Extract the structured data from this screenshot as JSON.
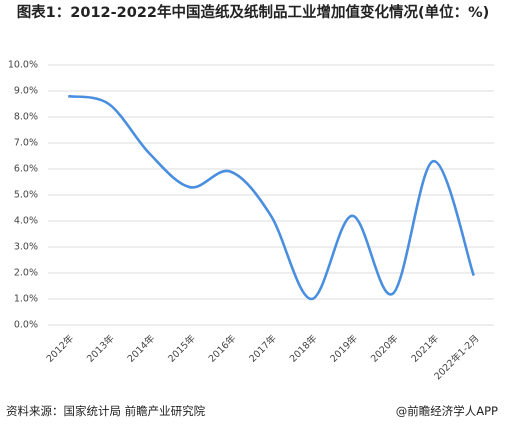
{
  "chart_data": {
    "type": "line",
    "title": "图表1：2012-2022年中国造纸及纸制品工业增加值变化情况(单位：%)",
    "source": "资料来源：国家统计局 前瞻产业研究院",
    "credit": "@前瞻经济学人APP",
    "categories": [
      "2012年",
      "2013年",
      "2014年",
      "2015年",
      "2016年",
      "2017年",
      "2018年",
      "2019年",
      "2020年",
      "2021年",
      "2022年1-2月"
    ],
    "values": [
      8.8,
      8.5,
      6.6,
      5.3,
      5.9,
      4.2,
      1.0,
      4.2,
      1.2,
      6.3,
      1.9
    ],
    "color": "#4a8ee0",
    "ylim": [
      0,
      10
    ],
    "yticks": [
      {
        "value": 0,
        "label": "0.0%"
      },
      {
        "value": 1,
        "label": "1.0%"
      },
      {
        "value": 2,
        "label": "2.0%"
      },
      {
        "value": 3,
        "label": "3.0%"
      },
      {
        "value": 4,
        "label": "4.0%"
      },
      {
        "value": 5,
        "label": "5.0%"
      },
      {
        "value": 6,
        "label": "6.0%"
      },
      {
        "value": 7,
        "label": "7.0%"
      },
      {
        "value": 8,
        "label": "8.0%"
      },
      {
        "value": 9,
        "label": "9.0%"
      },
      {
        "value": 10,
        "label": "10.0%"
      }
    ],
    "grid": true
  }
}
